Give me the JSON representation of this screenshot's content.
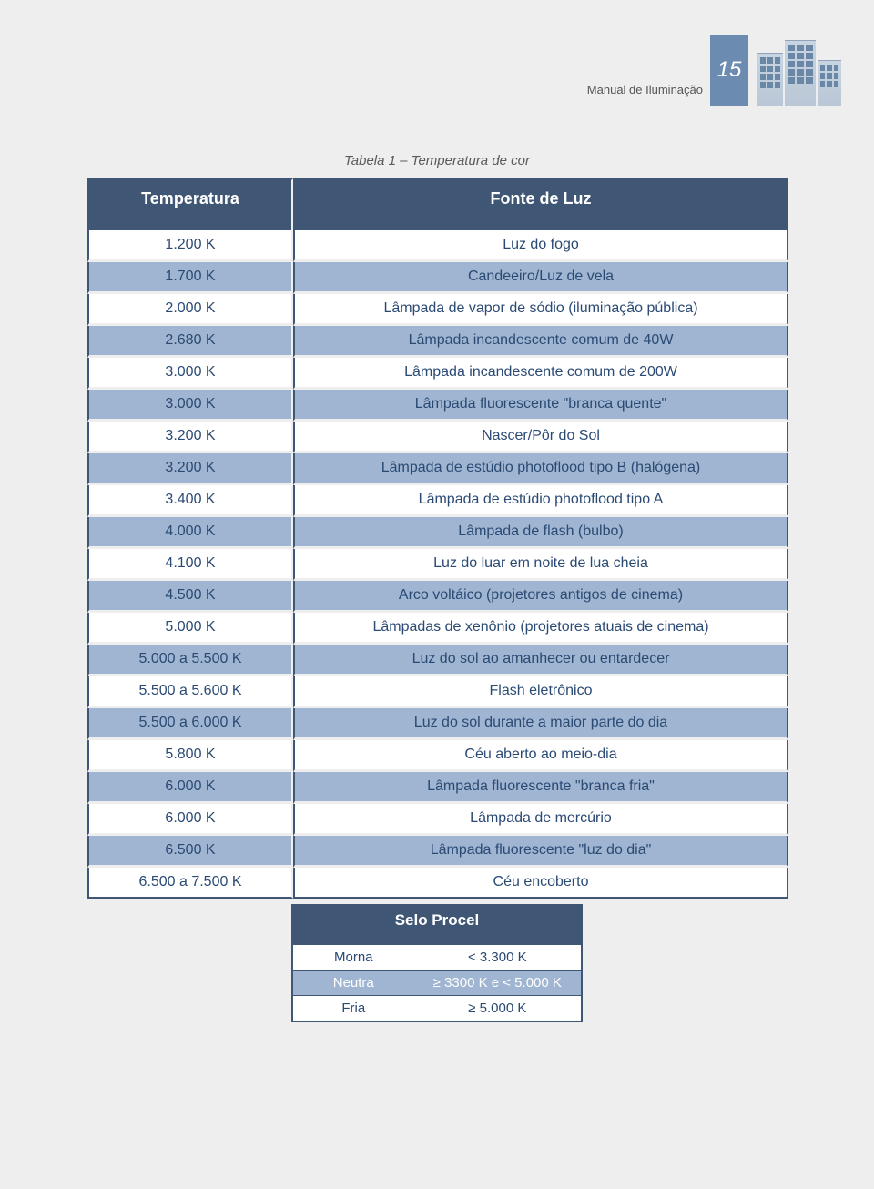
{
  "header": {
    "manual_label": "Manual de Iluminação",
    "page_number": "15"
  },
  "caption": "Tabela 1 – Temperatura de cor",
  "main_table": {
    "headers": {
      "temp": "Temperatura",
      "source": "Fonte de Luz"
    },
    "rows": [
      {
        "temp": "1.200 K",
        "source": "Luz do fogo"
      },
      {
        "temp": "1.700 K",
        "source": "Candeeiro/Luz de vela"
      },
      {
        "temp": "2.000 K",
        "source": "Lâmpada de vapor de sódio (iluminação pública)"
      },
      {
        "temp": "2.680 K",
        "source": "Lâmpada incandescente comum de 40W"
      },
      {
        "temp": "3.000 K",
        "source": "Lâmpada incandescente comum de 200W"
      },
      {
        "temp": "3.000 K",
        "source": "Lâmpada fluorescente \"branca quente\""
      },
      {
        "temp": "3.200 K",
        "source": "Nascer/Pôr do Sol"
      },
      {
        "temp": "3.200 K",
        "source": "Lâmpada de estúdio photoflood tipo B (halógena)"
      },
      {
        "temp": "3.400 K",
        "source": "Lâmpada de estúdio photoflood tipo A"
      },
      {
        "temp": "4.000 K",
        "source": "Lâmpada de flash (bulbo)"
      },
      {
        "temp": "4.100 K",
        "source": "Luz do luar em noite de lua cheia"
      },
      {
        "temp": "4.500 K",
        "source": "Arco voltáico (projetores antigos de cinema)"
      },
      {
        "temp": "5.000 K",
        "source": "Lâmpadas de xenônio (projetores atuais de cinema)"
      },
      {
        "temp": "5.000 a 5.500 K",
        "source": "Luz do sol ao amanhecer ou entardecer"
      },
      {
        "temp": "5.500 a 5.600 K",
        "source": "Flash eletrônico"
      },
      {
        "temp": "5.500 a 6.000 K",
        "source": "Luz do sol durante a maior parte do dia"
      },
      {
        "temp": "5.800 K",
        "source": "Céu aberto ao meio-dia"
      },
      {
        "temp": "6.000 K",
        "source": "Lâmpada fluorescente \"branca fria\""
      },
      {
        "temp": "6.000 K",
        "source": "Lâmpada de mercúrio"
      },
      {
        "temp": "6.500 K",
        "source": "Lâmpada fluorescente \"luz do dia\""
      },
      {
        "temp": "6.500 a 7.500 K",
        "source": "Céu encoberto"
      }
    ]
  },
  "small_table": {
    "title": "Selo Procel",
    "rows": [
      {
        "label": "Morna",
        "range": "< 3.300 K"
      },
      {
        "label": "Neutra",
        "range": "≥ 3300 K e < 5.000 K"
      },
      {
        "label": "Fria",
        "range": "≥ 5.000 K"
      }
    ]
  },
  "style": {
    "page_bg": "#eeeeee",
    "header_bg": "#3f5775",
    "row_odd_bg": "#ffffff",
    "row_even_bg": "#a0b5d1",
    "text_color": "#2a4a74",
    "page_number_bg": "#6b8bb0"
  }
}
